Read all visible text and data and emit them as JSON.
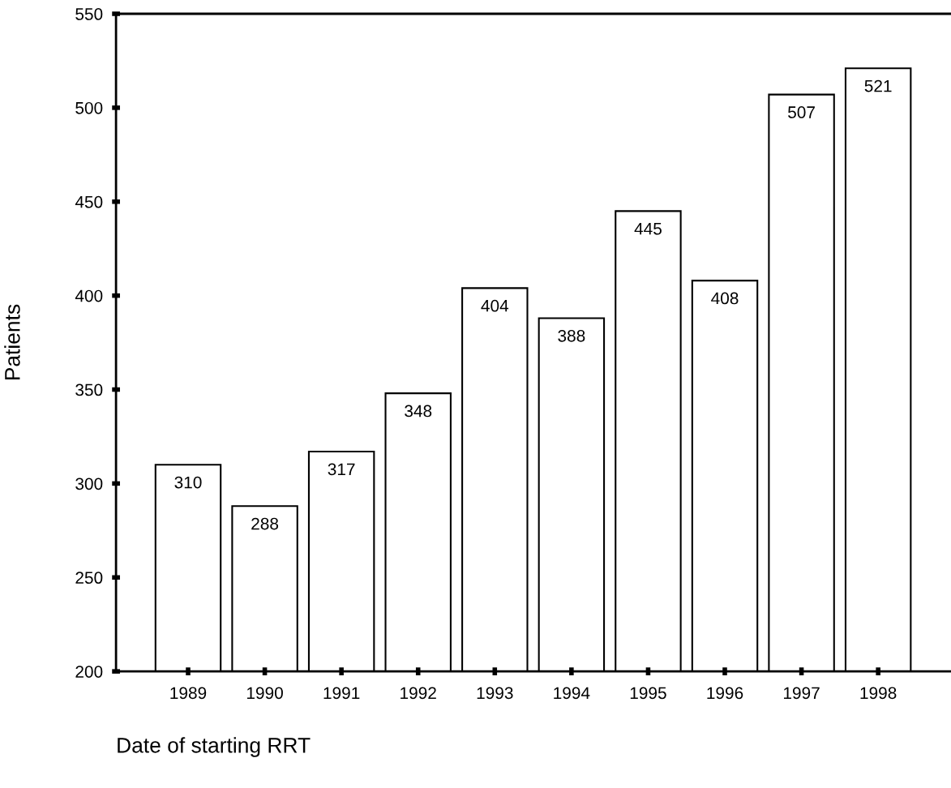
{
  "chart_data": {
    "type": "bar",
    "xlabel": "Date of starting RRT",
    "ylabel": "Patients",
    "categories": [
      "1989",
      "1990",
      "1991",
      "1992",
      "1993",
      "1994",
      "1995",
      "1996",
      "1997",
      "1998"
    ],
    "values": [
      310,
      288,
      317,
      348,
      404,
      388,
      445,
      408,
      507,
      521
    ],
    "color": "#ffffff",
    "ylim": [
      200,
      550
    ],
    "yticks": [
      200,
      250,
      300,
      350,
      400,
      450,
      500,
      550
    ],
    "data_labels": true,
    "grid": false
  }
}
